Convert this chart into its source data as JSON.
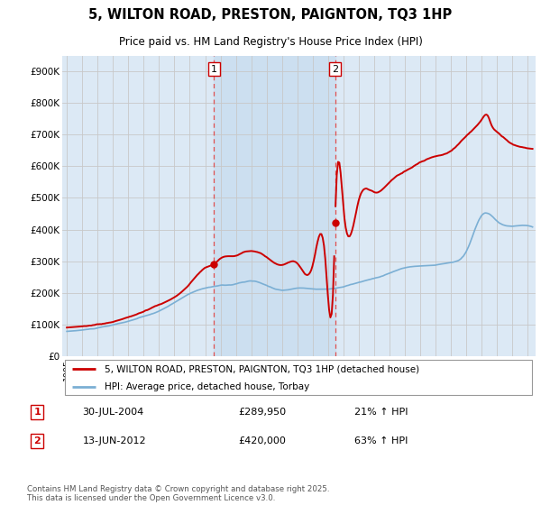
{
  "title": "5, WILTON ROAD, PRESTON, PAIGNTON, TQ3 1HP",
  "subtitle": "Price paid vs. HM Land Registry's House Price Index (HPI)",
  "ylabel_ticks": [
    "£0",
    "£100K",
    "£200K",
    "£300K",
    "£400K",
    "£500K",
    "£600K",
    "£700K",
    "£800K",
    "£900K"
  ],
  "ytick_vals": [
    0,
    100000,
    200000,
    300000,
    400000,
    500000,
    600000,
    700000,
    800000,
    900000
  ],
  "ylim": [
    0,
    950000
  ],
  "xlim_start": 1994.7,
  "xlim_end": 2025.5,
  "legend_line1": "5, WILTON ROAD, PRESTON, PAIGNTON, TQ3 1HP (detached house)",
  "legend_line2": "HPI: Average price, detached house, Torbay",
  "sale1_date": "30-JUL-2004",
  "sale1_price": "£289,950",
  "sale1_hpi": "21% ↑ HPI",
  "sale2_date": "13-JUN-2012",
  "sale2_price": "£420,000",
  "sale2_hpi": "63% ↑ HPI",
  "sale1_x": 2004.58,
  "sale1_y": 289950,
  "sale2_x": 2012.45,
  "sale2_y": 420000,
  "vline1_x": 2004.58,
  "vline2_x": 2012.45,
  "hpi_color": "#7bafd4",
  "property_color": "#cc0000",
  "vline_color": "#e05050",
  "background_color": "#dce9f5",
  "highlight_color": "#ccdff0",
  "grid_color": "#c8c8c8",
  "footnote": "Contains HM Land Registry data © Crown copyright and database right 2025.\nThis data is licensed under the Open Government Licence v3.0."
}
